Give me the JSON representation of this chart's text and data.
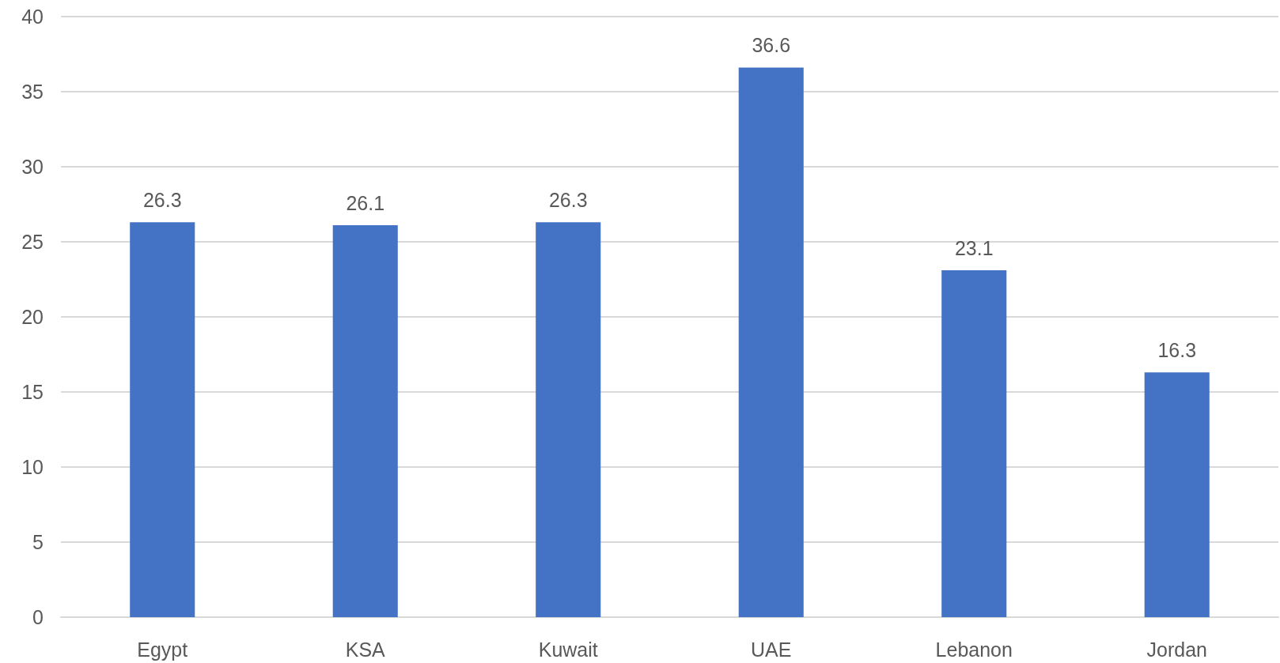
{
  "chart_data": {
    "type": "bar",
    "categories": [
      "Egypt",
      "KSA",
      "Kuwait",
      "UAE",
      "Lebanon",
      "Jordan"
    ],
    "values": [
      26.3,
      26.1,
      26.3,
      36.6,
      23.1,
      16.3
    ],
    "color": "#4472c4",
    "ylim": [
      0,
      40
    ],
    "yticks": [
      0,
      5,
      10,
      15,
      20,
      25,
      30,
      35,
      40
    ],
    "grid": "y",
    "data_labels": true
  }
}
